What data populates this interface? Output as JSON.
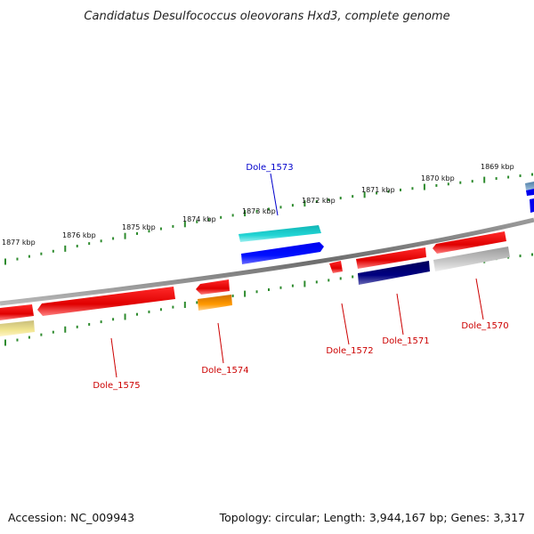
{
  "title": "Candidatus Desulfococcus oleovorans Hxd3, complete genome",
  "footer": {
    "accession": "Accession: NC_009943",
    "summary": "Topology: circular; Length: 3,944,167 bp; Genes: 3,317"
  },
  "colors": {
    "backbone": "#808080",
    "tick": "#2e8b2e",
    "label_red": "#cc0000",
    "label_blue": "#0000cc"
  },
  "ticks": [
    {
      "label": "1877 kbp"
    },
    {
      "label": "1876 kbp"
    },
    {
      "label": "1875 kbp"
    },
    {
      "label": "1874 kbp"
    },
    {
      "label": "1873 kbp"
    },
    {
      "label": "1872 kbp"
    },
    {
      "label": "1871 kbp"
    },
    {
      "label": "1870 kbp"
    },
    {
      "label": "1869 kbp"
    }
  ],
  "genes": [
    {
      "name": "Dole_1575",
      "color": "#ff0000"
    },
    {
      "name": "Dole_1574",
      "color": "#ff0000"
    },
    {
      "name": "Dole_1573",
      "color": "#00cccc"
    },
    {
      "name": "Dole_1572",
      "color": "#ff0000"
    },
    {
      "name": "Dole_1571",
      "color": "#ff0000"
    },
    {
      "name": "Dole_1570",
      "color": "#ff0000"
    }
  ]
}
